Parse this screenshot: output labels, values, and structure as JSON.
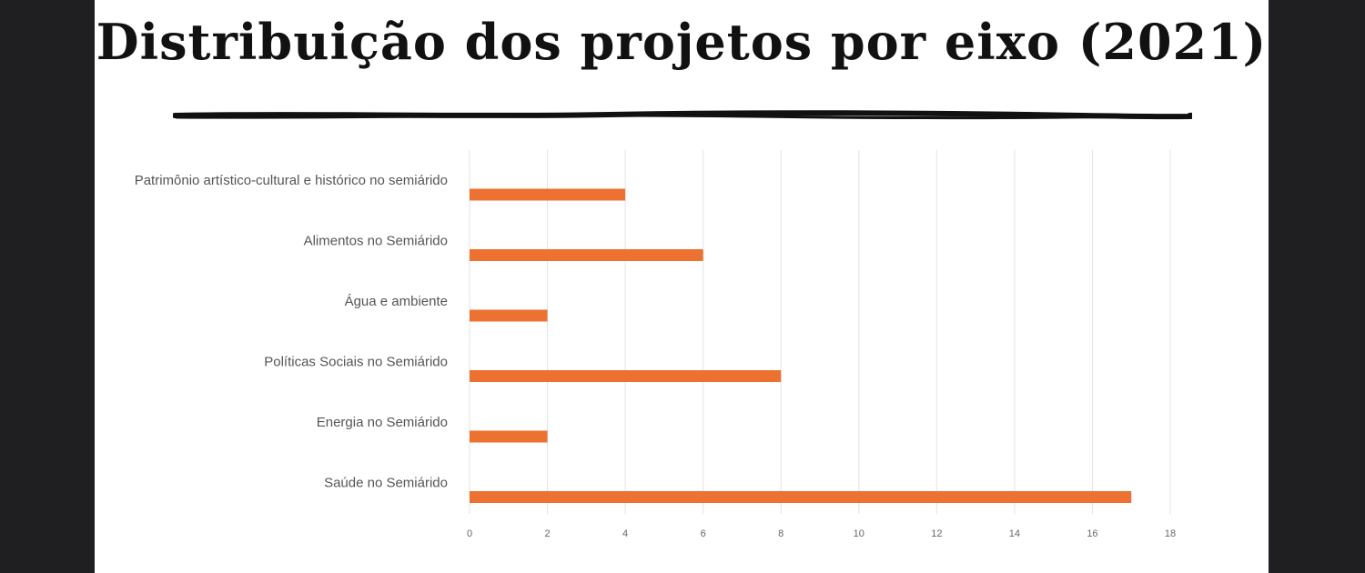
{
  "slide": {
    "title": "Distribuição dos projetos por eixo (2021)"
  },
  "colors": {
    "bar": "#ed7231",
    "gridline": "#e3e3e3",
    "background": "#ffffff",
    "frame": "#1f1f21"
  },
  "chart_data": {
    "type": "bar",
    "orientation": "horizontal",
    "title": "",
    "xlabel": "",
    "ylabel": "",
    "categories": [
      "Patrimônio artístico-cultural e histórico no semiárido",
      "Alimentos no Semiárido",
      "Água e ambiente",
      "Políticas Sociais no Semiárido",
      "Energia no Semiárido",
      "Saúde no Semiárido"
    ],
    "values": [
      4,
      6,
      2,
      8,
      2,
      17
    ],
    "xlim": [
      0,
      18
    ],
    "xticks": [
      0,
      2,
      4,
      6,
      8,
      10,
      12,
      14,
      16,
      18
    ],
    "grid": true,
    "legend": "none"
  }
}
